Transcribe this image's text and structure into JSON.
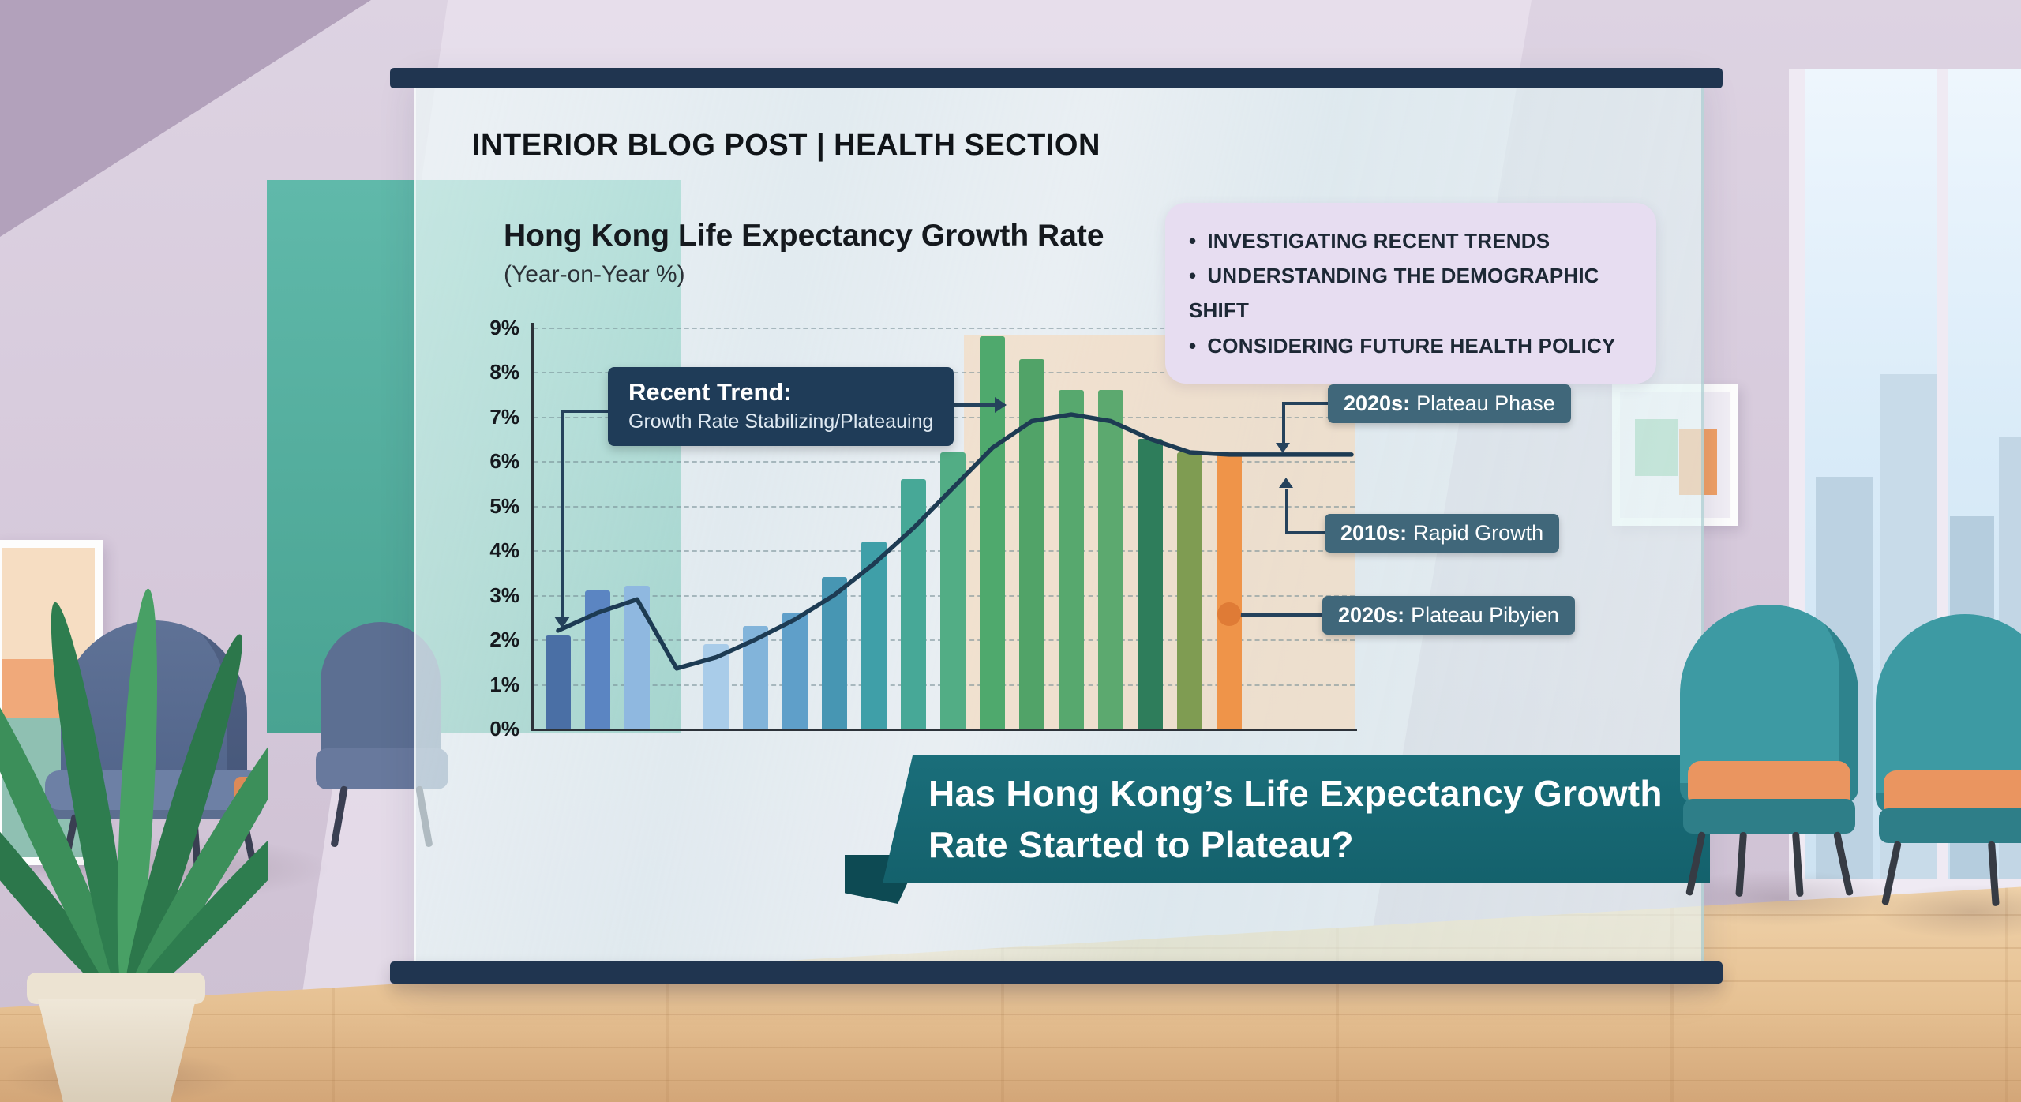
{
  "header": {
    "text": "INTERIOR BLOG POST | HEALTH SECTION"
  },
  "chart": {
    "title": "Hong Kong Life Expectancy Growth Rate",
    "subtitle": "(Year-on-Year %)"
  },
  "chart_data": {
    "type": "bar",
    "title": "Hong Kong Life Expectancy Growth Rate (Year-on-Year %)",
    "ylabel": "Year-on-Year growth (%)",
    "ylim": [
      0,
      9
    ],
    "y_tick_labels": [
      "0%",
      "1%",
      "2%",
      "3%",
      "4%",
      "5%",
      "6%",
      "7%",
      "8%",
      "9%"
    ],
    "grid": true,
    "categories": [],
    "bars": {
      "values": [
        2.1,
        3.1,
        3.2,
        null,
        1.9,
        2.3,
        2.6,
        3.4,
        4.2,
        5.6,
        6.2,
        8.8,
        8.3,
        7.6,
        7.6,
        6.5,
        6.2,
        6.2
      ],
      "colors": [
        "#4a6fa5",
        "#5b85c2",
        "#8fb8e0",
        null,
        "#a9cce9",
        "#82b4da",
        "#5f9fc9",
        "#4796b3",
        "#3f9fa8",
        "#47a897",
        "#52ad85",
        "#4fa96d",
        "#51a368",
        "#57a86e",
        "#5ca96f",
        "#2e7d5b",
        "#7f9c52",
        "#ef9449"
      ]
    },
    "line": {
      "name": "Trend line",
      "color": "#1d3b53",
      "values": [
        2.2,
        2.6,
        2.9,
        1.35,
        1.6,
        2.0,
        2.45,
        3.0,
        3.7,
        4.5,
        5.4,
        6.3,
        6.9,
        7.05,
        6.9,
        6.5,
        6.2,
        6.15
      ],
      "extend_flat_to_right": true
    },
    "highlight_region": {
      "from_slot": 10.6,
      "to": "right-edge",
      "color": "#f6d9ba",
      "opacity": 0.62
    }
  },
  "callout": {
    "title": "Recent Trend:",
    "body": "Growth Rate Stabilizing/Plateauing"
  },
  "bullet_box": {
    "items": [
      "INVESTIGATING RECENT TRENDS",
      "UNDERSTANDING THE DEMOGRAPHIC SHIFT",
      "CONSIDERING FUTURE HEALTH POLICY"
    ]
  },
  "badges": [
    {
      "year": "2020s:",
      "text": "Plateau Phase"
    },
    {
      "year": "2010s:",
      "text": "Rapid Growth"
    },
    {
      "year": "2020s:",
      "text": "Plateau Pibyien"
    }
  ],
  "banner": {
    "line1": "Has Hong Kong’s Life Expectancy Growth",
    "line2": "Rate Started to Plateau?"
  },
  "colors": {
    "screen_frame": "#203550",
    "callout_navy": "#1f3c58",
    "badge_slate": "#40677a",
    "banner_teal": "#176974",
    "highlight_peach": "#f6d9ba",
    "bullet_box_lavender": "#e7ddf1",
    "orange_bar": "#ef9449"
  }
}
